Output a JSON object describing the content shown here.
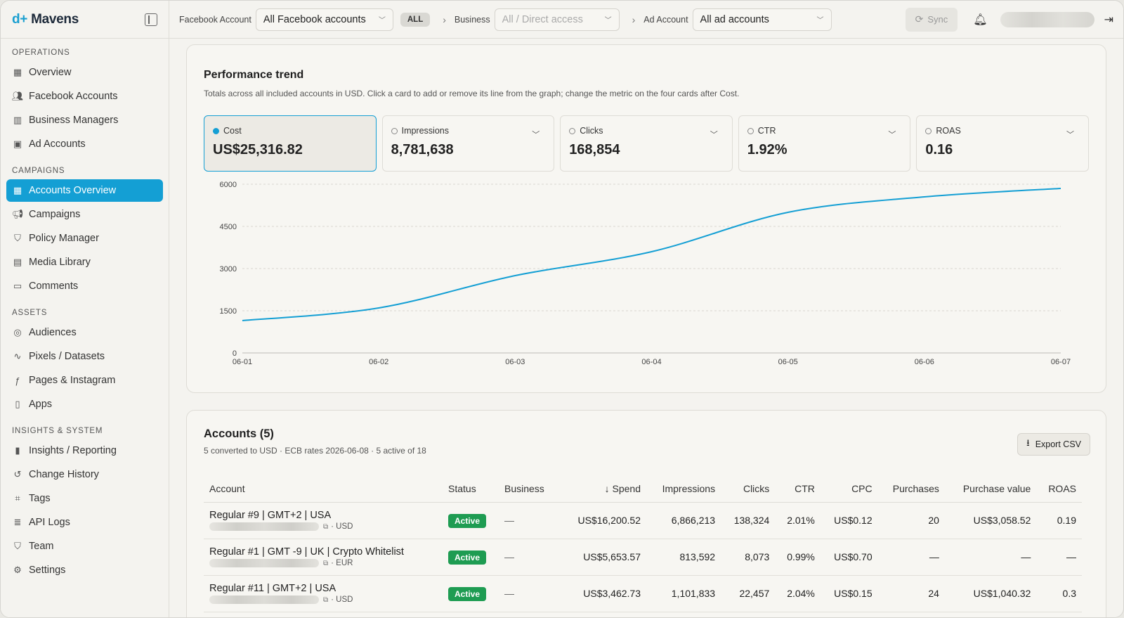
{
  "brand": {
    "name": "Mavens",
    "mark": "d+"
  },
  "sidebar": {
    "sections": [
      {
        "heading": "OPERATIONS",
        "items": [
          {
            "label": "Overview",
            "icon": "grid-icon"
          },
          {
            "label": "Facebook Accounts",
            "icon": "users-icon"
          },
          {
            "label": "Business Managers",
            "icon": "building-icon"
          },
          {
            "label": "Ad Accounts",
            "icon": "wallet-icon"
          }
        ]
      },
      {
        "heading": "CAMPAIGNS",
        "items": [
          {
            "label": "Accounts Overview",
            "icon": "grid-icon",
            "active": true
          },
          {
            "label": "Campaigns",
            "icon": "megaphone-icon"
          },
          {
            "label": "Policy Manager",
            "icon": "shield-icon"
          },
          {
            "label": "Media Library",
            "icon": "film-icon"
          },
          {
            "label": "Comments",
            "icon": "comment-icon"
          }
        ]
      },
      {
        "heading": "ASSETS",
        "items": [
          {
            "label": "Audiences",
            "icon": "target-icon"
          },
          {
            "label": "Pixels / Datasets",
            "icon": "activity-icon"
          },
          {
            "label": "Pages & Instagram",
            "icon": "facebook-icon"
          },
          {
            "label": "Apps",
            "icon": "phone-icon"
          }
        ]
      },
      {
        "heading": "INSIGHTS & SYSTEM",
        "items": [
          {
            "label": "Insights / Reporting",
            "icon": "bar-chart-icon"
          },
          {
            "label": "Change History",
            "icon": "history-icon"
          },
          {
            "label": "Tags",
            "icon": "tag-icon"
          },
          {
            "label": "API Logs",
            "icon": "log-icon"
          },
          {
            "label": "Team",
            "icon": "shield-icon"
          },
          {
            "label": "Settings",
            "icon": "gear-icon"
          }
        ]
      }
    ]
  },
  "topbar": {
    "fb_account_label": "Facebook Account",
    "fb_account_value": "All Facebook accounts",
    "all_pill": "ALL",
    "business_label": "Business",
    "business_value": "All / Direct access",
    "ad_account_label": "Ad Account",
    "ad_account_value": "All ad accounts",
    "sync_label": "Sync"
  },
  "performance": {
    "title": "Performance trend",
    "subtitle": "Totals across all included accounts in USD. Click a card to add or remove its line from the graph; change the metric on the four cards after Cost.",
    "metrics": [
      {
        "label": "Cost",
        "value": "US$25,316.82",
        "selected": true
      },
      {
        "label": "Impressions",
        "value": "8,781,638"
      },
      {
        "label": "Clicks",
        "value": "168,854"
      },
      {
        "label": "CTR",
        "value": "1.92%"
      },
      {
        "label": "ROAS",
        "value": "0.16"
      }
    ]
  },
  "chart_data": {
    "type": "line",
    "title": "",
    "xlabel": "",
    "ylabel": "",
    "x": [
      "06-01",
      "06-02",
      "06-03",
      "06-04",
      "06-05",
      "06-06",
      "06-07"
    ],
    "yticks": [
      "0",
      "1500",
      "3000",
      "4500",
      "6000"
    ],
    "ylim": [
      0,
      6000
    ],
    "grid": true,
    "series": [
      {
        "color": "#149fd4",
        "values": [
          1150,
          1600,
          2750,
          3600,
          5000,
          5550,
          5850
        ]
      }
    ]
  },
  "accounts": {
    "title": "Accounts (5)",
    "subtitle": "5 converted to USD · ECB rates 2026-06-08 · 5 active of 18",
    "export_label": "Export CSV",
    "columns": [
      "Account",
      "Status",
      "Business",
      "Spend",
      "Impressions",
      "Clicks",
      "CTR",
      "CPC",
      "Purchases",
      "Purchase value",
      "ROAS"
    ],
    "sort_arrow": "↓",
    "rows": [
      {
        "name": "Regular #9 | GMT+2 | USA",
        "currency": "· USD",
        "status": "Active",
        "business": "—",
        "spend": "US$16,200.52",
        "impressions": "6,866,213",
        "clicks": "138,324",
        "ctr": "2.01%",
        "cpc": "US$0.12",
        "purchases": "20",
        "purchase_value": "US$3,058.52",
        "roas": "0.19"
      },
      {
        "name": "Regular #1 | GMT -9 | UK | Crypto Whitelist",
        "currency": "· EUR",
        "status": "Active",
        "business": "—",
        "spend": "US$5,653.57",
        "impressions": "813,592",
        "clicks": "8,073",
        "ctr": "0.99%",
        "cpc": "US$0.70",
        "purchases": "—",
        "purchase_value": "—",
        "roas": "—"
      },
      {
        "name": "Regular #11 | GMT+2 | USA",
        "currency": "· USD",
        "status": "Active",
        "business": "—",
        "spend": "US$3,462.73",
        "impressions": "1,101,833",
        "clicks": "22,457",
        "ctr": "2.04%",
        "cpc": "US$0.15",
        "purchases": "24",
        "purchase_value": "US$1,040.32",
        "roas": "0.3"
      }
    ]
  }
}
